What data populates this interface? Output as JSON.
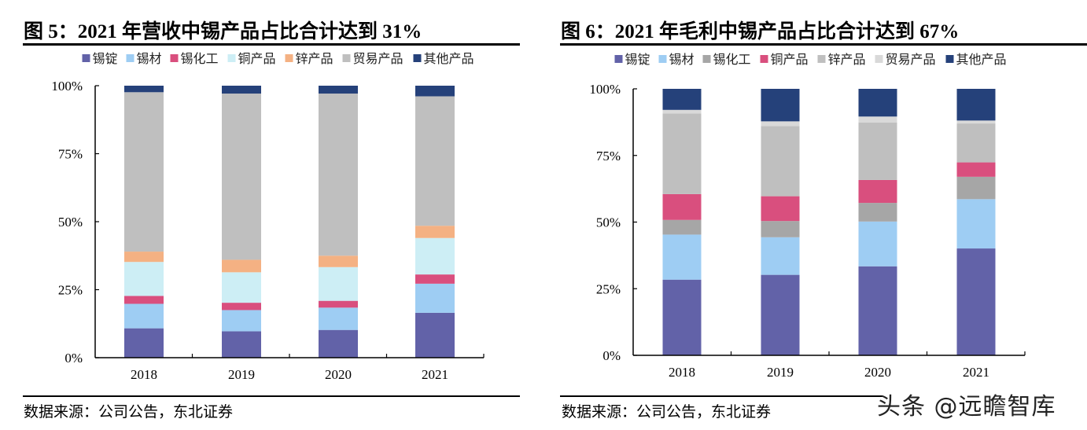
{
  "chart_data": [
    {
      "type": "bar",
      "stacked": true,
      "title": "图 5：2021 年营收中锡产品占比合计达到 31%",
      "source": "数据来源：公司公告，东北证券",
      "categories": [
        "2018",
        "2019",
        "2020",
        "2021"
      ],
      "yticks": [
        "0%",
        "25%",
        "50%",
        "75%",
        "100%"
      ],
      "ylim": [
        0,
        100
      ],
      "legend": "top",
      "series": [
        {
          "name": "锡锭",
          "color": "#6262a8",
          "values": [
            10.8,
            9.7,
            10.2,
            16.5
          ]
        },
        {
          "name": "锡材",
          "color": "#9ecdf3",
          "values": [
            9.0,
            7.8,
            8.2,
            10.7
          ]
        },
        {
          "name": "锡化工",
          "color": "#d94f7e",
          "values": [
            2.9,
            2.7,
            2.5,
            3.4
          ]
        },
        {
          "name": "铜产品",
          "color": "#cdeef5",
          "values": [
            12.5,
            11.2,
            12.4,
            13.4
          ]
        },
        {
          "name": "锌产品",
          "color": "#f4b183",
          "values": [
            3.8,
            4.6,
            4.2,
            4.5
          ]
        },
        {
          "name": "贸易产品",
          "color": "#bfbfbf",
          "values": [
            58.6,
            61.1,
            59.6,
            47.6
          ]
        },
        {
          "name": "其他产品",
          "color": "#25417a",
          "values": [
            2.4,
            2.9,
            2.9,
            3.9
          ]
        }
      ]
    },
    {
      "type": "bar",
      "stacked": true,
      "title": "图 6：2021 年毛利中锡产品占比合计达到 67%",
      "source": "数据来源：公司公告，东北证券",
      "categories": [
        "2018",
        "2019",
        "2020",
        "2021"
      ],
      "yticks": [
        "0%",
        "25%",
        "50%",
        "75%",
        "100%"
      ],
      "ylim": [
        0,
        100
      ],
      "legend": "top",
      "series": [
        {
          "name": "锡锭",
          "color": "#6262a8",
          "values": [
            28.4,
            30.2,
            33.4,
            40.1
          ]
        },
        {
          "name": "锡材",
          "color": "#9ecdf3",
          "values": [
            16.9,
            14.1,
            16.8,
            18.5
          ]
        },
        {
          "name": "锡化工",
          "color": "#a6a6a6",
          "values": [
            5.5,
            6.1,
            7.0,
            8.4
          ]
        },
        {
          "name": "铜产品",
          "color": "#d94f7e",
          "values": [
            9.7,
            9.3,
            8.6,
            5.4
          ]
        },
        {
          "name": "锌产品",
          "color": "#bfbfbf",
          "values": [
            30.2,
            26.3,
            21.6,
            14.6
          ]
        },
        {
          "name": "贸易产品",
          "color": "#d9d9d9",
          "values": [
            1.4,
            1.8,
            2.2,
            1.1
          ]
        },
        {
          "name": "其他产品",
          "color": "#25417a",
          "values": [
            7.9,
            12.2,
            10.4,
            11.9
          ]
        }
      ]
    }
  ],
  "watermark": "头条 @远瞻智库"
}
